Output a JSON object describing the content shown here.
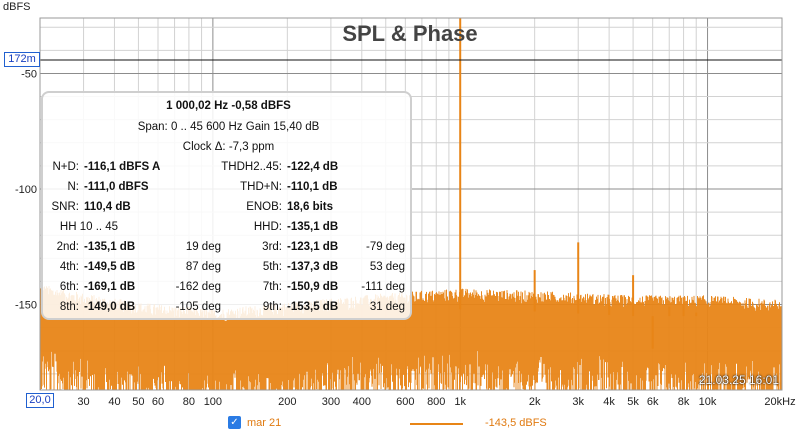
{
  "chart_data": {
    "type": "line",
    "title": "SPL & Phase",
    "ylabel": "dBFS",
    "xlabel": "",
    "x_scale": "log",
    "xlim": [
      20,
      20000
    ],
    "ylim": [
      -187,
      -26
    ],
    "x_ticks": [
      {
        "v": 20,
        "t": "20,0"
      },
      {
        "v": 30,
        "t": "30"
      },
      {
        "v": 40,
        "t": "40"
      },
      {
        "v": 50,
        "t": "50"
      },
      {
        "v": 60,
        "t": "60"
      },
      {
        "v": 80,
        "t": "80"
      },
      {
        "v": 100,
        "t": "100"
      },
      {
        "v": 200,
        "t": "200"
      },
      {
        "v": 300,
        "t": "300"
      },
      {
        "v": 400,
        "t": "400"
      },
      {
        "v": 600,
        "t": "600"
      },
      {
        "v": 800,
        "t": "800"
      },
      {
        "v": 1000,
        "t": "1k"
      },
      {
        "v": 2000,
        "t": "2k"
      },
      {
        "v": 3000,
        "t": "3k"
      },
      {
        "v": 4000,
        "t": "4k"
      },
      {
        "v": 5000,
        "t": "5k"
      },
      {
        "v": 6000,
        "t": "6k"
      },
      {
        "v": 8000,
        "t": "8k"
      },
      {
        "v": 10000,
        "t": "10k"
      },
      {
        "v": 20000,
        "t": "20kHz"
      }
    ],
    "y_ticks": [
      {
        "v": -50,
        "t": "-50"
      },
      {
        "v": -100,
        "t": "-100"
      },
      {
        "v": -150,
        "t": "-150"
      }
    ],
    "grid": true,
    "series": [
      {
        "name": "mar 21",
        "color": "#e88517",
        "noise_floor": [
          [
            20,
            -155
          ],
          [
            30,
            -159
          ],
          [
            50,
            -163
          ],
          [
            100,
            -166
          ],
          [
            200,
            -163
          ],
          [
            400,
            -160
          ],
          [
            700,
            -158
          ],
          [
            1000,
            -157
          ],
          [
            2000,
            -158
          ],
          [
            5000,
            -160
          ],
          [
            10000,
            -160
          ],
          [
            20000,
            -162
          ]
        ],
        "peaks": [
          [
            1000,
            -0.58
          ],
          [
            2000,
            -135.1
          ],
          [
            3000,
            -123.1
          ],
          [
            4000,
            -149.5
          ],
          [
            5000,
            -137.3
          ],
          [
            6000,
            -169.1
          ],
          [
            7000,
            -150.9
          ],
          [
            8000,
            -149.0
          ],
          [
            9000,
            -153.5
          ]
        ]
      }
    ],
    "legend_position": "bottom"
  },
  "y_unit": "dBFS",
  "cursor_y_label": "172m",
  "cursor_x_label": "20,0",
  "timestamp": "21.03.25 16:01",
  "legend": {
    "checkbox": "✓",
    "series_name": "mar 21",
    "series_value": "-143,5 dBFS"
  },
  "stats": {
    "line1": "1 000,02 Hz  -0,58 dBFS",
    "line2": "Span: 0 .. 45 600 Hz  Gain 15,40 dB",
    "line3": "Clock Δ: -7,3 ppm",
    "rows": [
      {
        "l_label": "N+D:",
        "l_value": "-116,1 dBFS A",
        "r_label": "THDH2..45:",
        "r_value": "-122,4 dB",
        "l_deg": "",
        "r_deg": ""
      },
      {
        "l_label": "N:",
        "l_value": "-111,0 dBFS",
        "r_label": "THD+N:",
        "r_value": "-110,1 dB",
        "l_deg": "",
        "r_deg": ""
      },
      {
        "l_label": "SNR:",
        "l_value": "110,4 dB",
        "r_label": "ENOB:",
        "r_value": "18,6 bits",
        "l_deg": "",
        "r_deg": ""
      },
      {
        "l_label": "HH 10 .. 45",
        "l_value": "",
        "r_label": "HHD:",
        "r_value": "-135,1 dB",
        "l_deg": "",
        "r_deg": ""
      },
      {
        "l_label": "2nd:",
        "l_value": "-135,1 dB",
        "l_deg": "19 deg",
        "r_label": "3rd:",
        "r_value": "-123,1 dB",
        "r_deg": "-79 deg"
      },
      {
        "l_label": "4th:",
        "l_value": "-149,5 dB",
        "l_deg": "87 deg",
        "r_label": "5th:",
        "r_value": "-137,3 dB",
        "r_deg": "53 deg"
      },
      {
        "l_label": "6th:",
        "l_value": "-169,1 dB",
        "l_deg": "-162 deg",
        "r_label": "7th:",
        "r_value": "-150,9 dB",
        "r_deg": "-111 deg"
      },
      {
        "l_label": "8th:",
        "l_value": "-149,0 dB",
        "l_deg": "-105 deg",
        "r_label": "9th:",
        "r_value": "-153,5 dB",
        "r_deg": "31 deg"
      }
    ]
  }
}
